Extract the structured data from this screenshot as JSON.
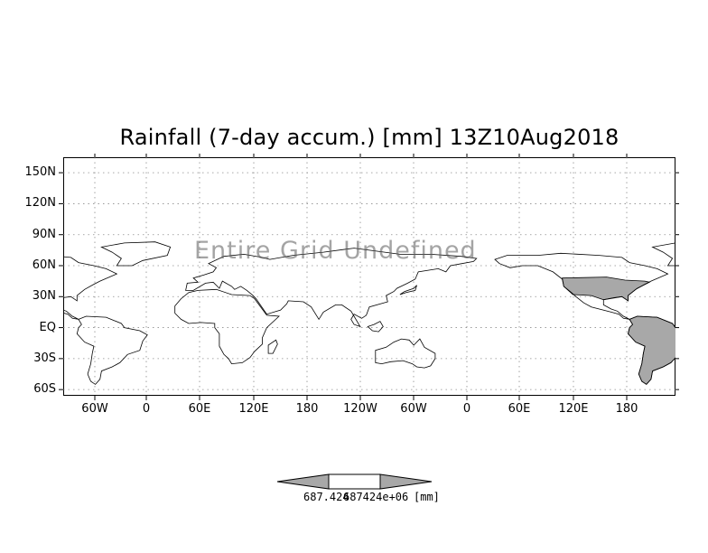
{
  "title": "Rainfall (7-day accum.) [mm] 13Z10Aug2018",
  "overlay_text": "Entire Grid Undefined",
  "y_ticks": [
    "150N",
    "120N",
    "90N",
    "60N",
    "30N",
    "EQ",
    "30S",
    "60S"
  ],
  "x_ticks": [
    "60W",
    "0",
    "60E",
    "120E",
    "180",
    "120W",
    "60W",
    "0",
    "60E",
    "120E",
    "180"
  ],
  "colorbar": {
    "left_label": "687.424",
    "right_label": "687424e+06",
    "unit": "[mm]"
  },
  "colors": {
    "land_fill": "#a8a8a8",
    "coast": "#000000",
    "grid": "#8c8c8c"
  }
}
